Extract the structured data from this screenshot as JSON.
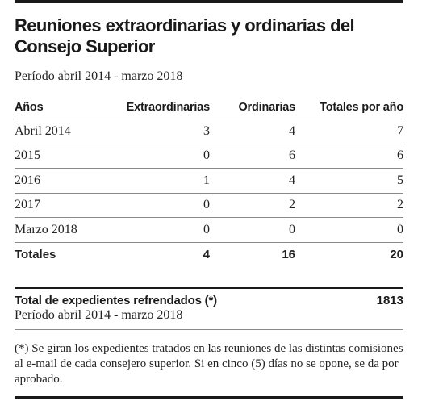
{
  "title": "Reuniones extraordinarias y ordinarias del Consejo Superior",
  "subtitle": "Período abril 2014 - marzo 2018",
  "table": {
    "headers": [
      "Años",
      "Extraordinarias",
      "Ordinarias",
      "Totales por año"
    ],
    "rows": [
      [
        "Abril 2014",
        "3",
        "4",
        "7"
      ],
      [
        "2015",
        "0",
        "6",
        "6"
      ],
      [
        "2016",
        "1",
        "4",
        "5"
      ],
      [
        "2017",
        "0",
        "2",
        "2"
      ],
      [
        "Marzo 2018",
        "0",
        "0",
        "0"
      ]
    ],
    "totals": [
      "Totales",
      "4",
      "16",
      "20"
    ]
  },
  "expedientes": {
    "label": "Total de expedientes refrendados (*)",
    "value": "1813",
    "period": "Período abril 2014 - marzo 2018"
  },
  "footnote": "(*) Se giran los expedientes tratados en las reuniones de las distintas comisiones al e-mail de cada consejero superior. Si en cinco (5) días no se opone, se da por aprobado."
}
